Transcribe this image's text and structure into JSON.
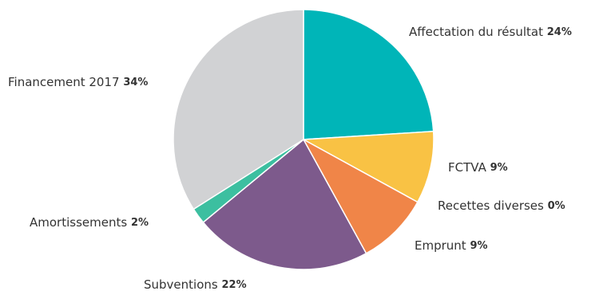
{
  "chart_data": {
    "type": "pie",
    "categories": [
      "Affectation du résultat",
      "FCTVA",
      "Recettes diverses",
      "Emprunt",
      "Subventions",
      "Amortissements",
      "Financement 2017"
    ],
    "values": [
      24,
      9,
      0,
      9,
      22,
      2,
      34
    ],
    "value_labels": [
      "24%",
      "9%",
      "0%",
      "9%",
      "22%",
      "2%",
      "34%"
    ],
    "colors": [
      "#00b5b8",
      "#f9c244",
      "#8fb0c0",
      "#f08548",
      "#7d5a8c",
      "#3cbfa0",
      "#d1d2d4"
    ]
  }
}
